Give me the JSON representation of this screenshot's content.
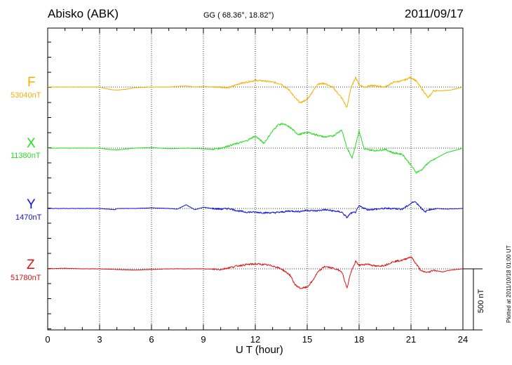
{
  "header": {
    "station": "Abisko (ABK)",
    "coords": "GG ( 68.36°,  18.82°)",
    "date": "2011/09/17"
  },
  "footer": {
    "xlabel": "U T (hour)",
    "plotted": "Plotted at 2011/10/18 01:00 UT",
    "scale": "500 nT"
  },
  "colors": {
    "F": "#f5b000",
    "X": "#22e01e",
    "Y": "#1010d8",
    "Z": "#e01010",
    "grid": "#000000"
  },
  "chart_data": {
    "type": "line",
    "title": "Abisko (ABK)",
    "xlabel": "U T (hour)",
    "xlim": [
      0,
      24
    ],
    "xticks": [
      0,
      3,
      6,
      9,
      12,
      15,
      18,
      21,
      24
    ],
    "scale_bar_nT": 500,
    "series": [
      {
        "name": "F",
        "baseline_label": "53040nT",
        "baseline": 53040,
        "unit": "nT",
        "x": [
          0,
          1,
          2,
          3,
          3.6,
          4,
          4.5,
          5,
          6,
          7,
          8,
          8.5,
          9,
          9.5,
          10,
          10.5,
          11,
          11.5,
          12,
          12.5,
          13,
          13.5,
          14,
          14.3,
          14.6,
          15,
          15.3,
          15.6,
          16,
          16.5,
          17,
          17.3,
          17.5,
          17.8,
          18,
          18.3,
          18.6,
          19,
          19.5,
          20,
          20.5,
          21,
          21.3,
          21.6,
          22,
          22.3,
          22.8,
          23.3,
          24
        ],
        "values": [
          0,
          0,
          0,
          0,
          -20,
          -25,
          -20,
          -5,
          0,
          0,
          10,
          0,
          5,
          0,
          0,
          -5,
          25,
          40,
          55,
          50,
          40,
          25,
          -30,
          -90,
          -130,
          -100,
          -40,
          25,
          30,
          -5,
          -90,
          -170,
          -20,
          80,
          20,
          0,
          10,
          10,
          0,
          40,
          50,
          80,
          50,
          -10,
          -90,
          -30,
          -30,
          -25,
          0
        ]
      },
      {
        "name": "X",
        "baseline_label": "11380nT",
        "baseline": 11380,
        "unit": "nT",
        "x": [
          0,
          1,
          2,
          3,
          3.5,
          4,
          5,
          6,
          7,
          8,
          9,
          9.5,
          10,
          10.5,
          11,
          11.5,
          12,
          12.5,
          13,
          13.3,
          13.6,
          14,
          14.5,
          15,
          15.5,
          16,
          16.5,
          17,
          17.3,
          17.6,
          18,
          18.3,
          19,
          19.5,
          20,
          20.5,
          21,
          21.3,
          21.6,
          22,
          22.5,
          23,
          24
        ],
        "values": [
          0,
          0,
          0,
          0,
          -10,
          -15,
          0,
          5,
          -5,
          0,
          -5,
          -10,
          0,
          20,
          40,
          60,
          100,
          40,
          140,
          190,
          200,
          170,
          110,
          130,
          110,
          90,
          100,
          150,
          0,
          -80,
          140,
          -10,
          -20,
          -10,
          -40,
          -50,
          -140,
          -200,
          -180,
          -120,
          -80,
          -40,
          0
        ]
      },
      {
        "name": "Y",
        "baseline_label": "1470nT",
        "baseline": 1470,
        "unit": "nT",
        "x": [
          0,
          1,
          2,
          3,
          3.9,
          4,
          5,
          6,
          7,
          7.5,
          8,
          8.5,
          9,
          9.5,
          10,
          10.5,
          11,
          11.5,
          12,
          12.5,
          13,
          13.5,
          14,
          14.5,
          15,
          15.5,
          16,
          16.5,
          17,
          17.3,
          17.5,
          17.8,
          18,
          18.5,
          19,
          19.5,
          20,
          20.5,
          21,
          21.2,
          21.5,
          21.8,
          22,
          22.5,
          23,
          24
        ],
        "values": [
          0,
          0,
          0,
          0,
          -10,
          0,
          0,
          5,
          0,
          -5,
          30,
          -10,
          10,
          0,
          -5,
          0,
          -20,
          -30,
          -30,
          -35,
          -35,
          -30,
          -20,
          -25,
          -15,
          -20,
          -10,
          -20,
          -30,
          -75,
          -40,
          -30,
          20,
          -10,
          -5,
          0,
          0,
          -5,
          40,
          60,
          20,
          -30,
          -10,
          0,
          -5,
          0
        ]
      },
      {
        "name": "Z",
        "baseline_label": "51780nT",
        "baseline": 51780,
        "unit": "nT",
        "x": [
          0,
          1,
          2,
          3,
          4,
          5,
          6,
          7,
          8,
          9,
          10,
          10.5,
          11,
          11.5,
          12,
          12.5,
          13,
          13.5,
          14,
          14.3,
          14.6,
          15,
          15.3,
          15.6,
          16,
          16.5,
          17,
          17.3,
          17.5,
          17.8,
          18,
          18.5,
          19,
          19.5,
          20,
          20.5,
          21,
          21.3,
          21.6,
          22,
          22.3,
          22.8,
          23.3,
          24
        ],
        "values": [
          0,
          5,
          0,
          0,
          -5,
          -10,
          -5,
          0,
          0,
          0,
          -5,
          10,
          25,
          35,
          40,
          35,
          25,
          0,
          -50,
          -130,
          -160,
          -150,
          -100,
          -30,
          20,
          5,
          -20,
          -160,
          -40,
          60,
          30,
          40,
          20,
          30,
          60,
          70,
          100,
          40,
          -20,
          -30,
          -10,
          -25,
          -10,
          0
        ]
      }
    ]
  }
}
